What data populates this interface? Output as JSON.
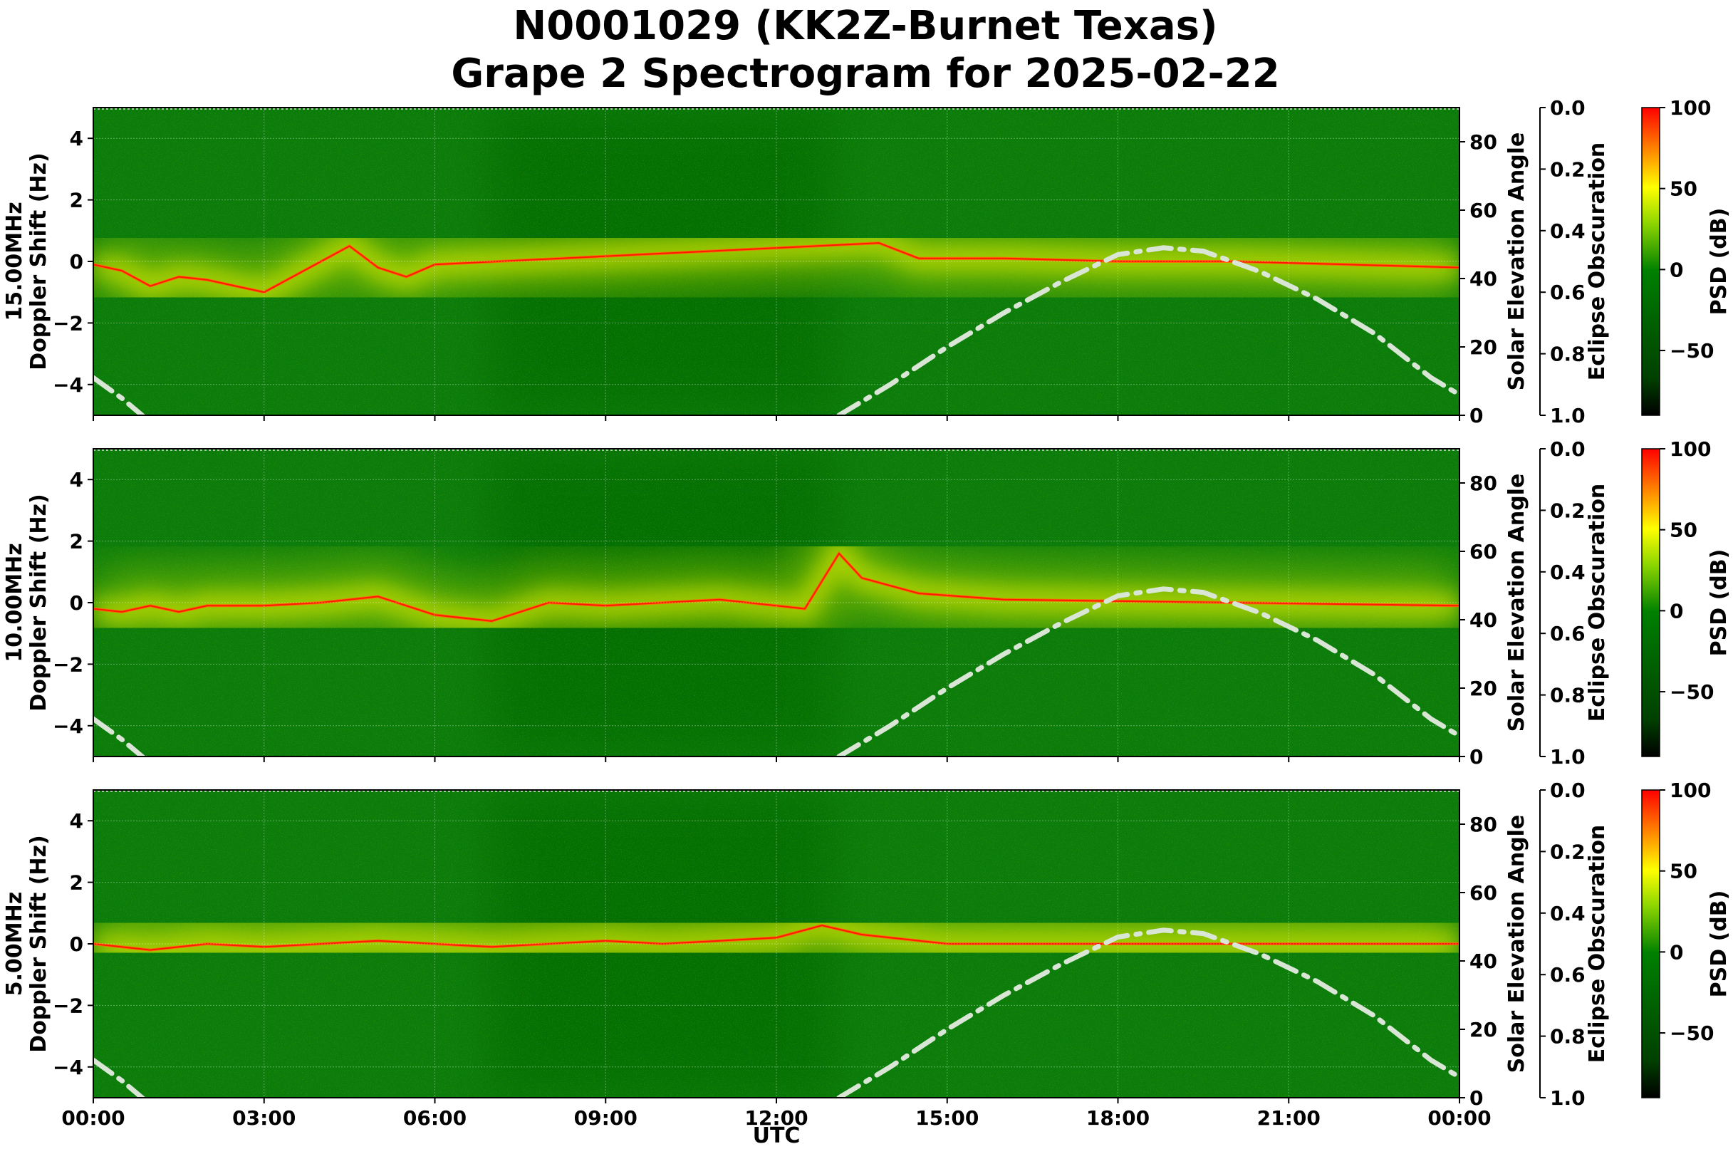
{
  "chart_data": {
    "type": "heatmap",
    "title_line1": "N0001029 (KK2Z-Burnet Texas)",
    "title_line2": "Grape 2 Spectrogram for 2025-02-22",
    "xlabel": "UTC",
    "x_ticks": [
      "00:00",
      "03:00",
      "06:00",
      "09:00",
      "12:00",
      "15:00",
      "18:00",
      "21:00",
      "00:00"
    ],
    "x_range_hours": [
      0,
      24
    ],
    "doppler_ticks": [
      "4",
      "2",
      "0",
      "−2",
      "−4"
    ],
    "doppler_tick_values": [
      4,
      2,
      0,
      -2,
      -4
    ],
    "ylim": [
      -5,
      5
    ],
    "elev_label": "Solar Elevation Angle",
    "elev_ticks": [
      "80",
      "60",
      "40",
      "20",
      "0"
    ],
    "elev_tick_values": [
      80,
      60,
      40,
      20,
      0
    ],
    "elev_range": [
      0,
      90
    ],
    "eclipse_label": "Eclipse Obscuration",
    "eclipse_ticks": [
      "0.0",
      "0.2",
      "0.4",
      "0.6",
      "0.8",
      "1.0"
    ],
    "eclipse_tick_values": [
      0,
      0.2,
      0.4,
      0.6,
      0.8,
      1.0
    ],
    "colorbar_label": "PSD (dB)",
    "colorbar_ticks": [
      "100",
      "50",
      "0",
      "−50"
    ],
    "colorbar_tick_values": [
      100,
      50,
      0,
      -50
    ],
    "colorbar_range": [
      -90,
      100
    ],
    "colormap": [
      "#000000",
      "#005a00",
      "#008000",
      "#8ad400",
      "#ffff00",
      "#ff8000",
      "#ff0000"
    ],
    "grid": true,
    "panels": [
      {
        "label": "15.00MHz Doppler Shift (Hz)",
        "label_line1": "15.00MHz",
        "label_line2": "Doppler Shift (Hz)",
        "carrier_trace": [
          {
            "t": 0,
            "f": -0.1
          },
          {
            "t": 0.5,
            "f": -0.3
          },
          {
            "t": 1,
            "f": -0.8
          },
          {
            "t": 1.5,
            "f": -0.5
          },
          {
            "t": 2,
            "f": -0.6
          },
          {
            "t": 2.5,
            "f": -0.8
          },
          {
            "t": 3,
            "f": -1.0
          },
          {
            "t": 3.5,
            "f": -0.5
          },
          {
            "t": 4,
            "f": 0.0
          },
          {
            "t": 4.5,
            "f": 0.5
          },
          {
            "t": 5,
            "f": -0.2
          },
          {
            "t": 5.5,
            "f": -0.5
          },
          {
            "t": 6,
            "f": -0.1
          },
          {
            "t": 13.8,
            "f": 0.6
          },
          {
            "t": 14.5,
            "f": 0.1
          },
          {
            "t": 16,
            "f": 0.1
          },
          {
            "t": 18,
            "f": 0.0
          },
          {
            "t": 20,
            "f": 0.0
          },
          {
            "t": 22,
            "f": -0.1
          },
          {
            "t": 24,
            "f": -0.2
          }
        ]
      },
      {
        "label": "10.00MHz Doppler Shift (Hz)",
        "label_line1": "10.00MHz",
        "label_line2": "Doppler Shift (Hz)",
        "carrier_trace": [
          {
            "t": 0,
            "f": -0.2
          },
          {
            "t": 0.5,
            "f": -0.3
          },
          {
            "t": 1,
            "f": -0.1
          },
          {
            "t": 1.5,
            "f": -0.3
          },
          {
            "t": 2,
            "f": -0.1
          },
          {
            "t": 3,
            "f": -0.1
          },
          {
            "t": 4,
            "f": 0.0
          },
          {
            "t": 5,
            "f": 0.2
          },
          {
            "t": 6,
            "f": -0.4
          },
          {
            "t": 7,
            "f": -0.6
          },
          {
            "t": 8,
            "f": 0.0
          },
          {
            "t": 9,
            "f": -0.1
          },
          {
            "t": 10,
            "f": 0.0
          },
          {
            "t": 11,
            "f": 0.1
          },
          {
            "t": 12.5,
            "f": -0.2
          },
          {
            "t": 13.1,
            "f": 1.6
          },
          {
            "t": 13.5,
            "f": 0.8
          },
          {
            "t": 14.5,
            "f": 0.3
          },
          {
            "t": 16,
            "f": 0.1
          },
          {
            "t": 20,
            "f": 0.0
          },
          {
            "t": 24,
            "f": -0.1
          }
        ]
      },
      {
        "label": "5.00MHz Doppler Shift (Hz)",
        "label_line1": "5.00MHz",
        "label_line2": "Doppler Shift (Hz)",
        "carrier_trace": [
          {
            "t": 0,
            "f": 0.0
          },
          {
            "t": 1,
            "f": -0.2
          },
          {
            "t": 2,
            "f": 0.0
          },
          {
            "t": 3,
            "f": -0.1
          },
          {
            "t": 4,
            "f": 0.0
          },
          {
            "t": 5,
            "f": 0.1
          },
          {
            "t": 6,
            "f": 0.0
          },
          {
            "t": 7,
            "f": -0.1
          },
          {
            "t": 8,
            "f": 0.0
          },
          {
            "t": 9,
            "f": 0.1
          },
          {
            "t": 10,
            "f": 0.0
          },
          {
            "t": 11,
            "f": 0.1
          },
          {
            "t": 12,
            "f": 0.2
          },
          {
            "t": 12.8,
            "f": 0.6
          },
          {
            "t": 13.5,
            "f": 0.3
          },
          {
            "t": 15,
            "f": 0.0
          },
          {
            "t": 24,
            "f": 0.0
          }
        ]
      }
    ],
    "solar_elevation": [
      {
        "t": 0,
        "elev": 11
      },
      {
        "t": 0.5,
        "elev": 5
      },
      {
        "t": 1,
        "elev": -2
      },
      {
        "t": 13.1,
        "elev": 0
      },
      {
        "t": 14,
        "elev": 9
      },
      {
        "t": 15,
        "elev": 20
      },
      {
        "t": 16,
        "elev": 30
      },
      {
        "t": 17,
        "elev": 39
      },
      {
        "t": 18,
        "elev": 47
      },
      {
        "t": 18.8,
        "elev": 49
      },
      {
        "t": 19.5,
        "elev": 48
      },
      {
        "t": 20.5,
        "elev": 42
      },
      {
        "t": 21.5,
        "elev": 34
      },
      {
        "t": 22.5,
        "elev": 24
      },
      {
        "t": 23.5,
        "elev": 11
      },
      {
        "t": 24,
        "elev": 6
      }
    ],
    "solar_line_color": "#d9e5d5"
  }
}
